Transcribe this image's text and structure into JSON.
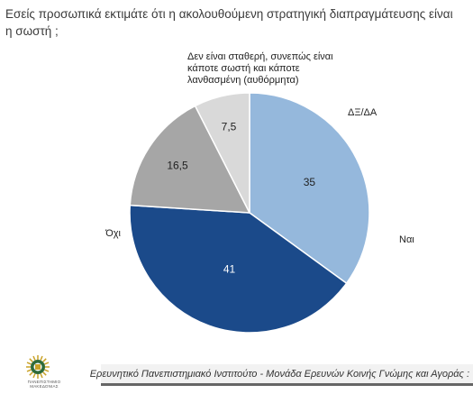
{
  "question": "Εσείς προσωπικά εκτιμάτε ότι η ακολουθούμενη στρατηγική διαπραγμάτευσης είναι η σωστή ;",
  "footer": {
    "text": "Ερευνητικό Πανεπιστημιακό Ινστιτούτο - Μονάδα Ερευνών Κοινής Γνώμης και Αγοράς :",
    "logo_text": "ΠΑΝΕΠΙΣΤΗΜΙΟ ΜΑΚΕΔΟΝΙΑΣ"
  },
  "colors": {
    "nai": "#95b8dc",
    "ochi": "#1b4a8a",
    "unstable": "#a6a6a6",
    "dk_na": "#d9d9d9",
    "logo_gold": "#c9a227",
    "logo_green": "#2f6b3a"
  },
  "chart_data": {
    "type": "pie",
    "title": "",
    "start": "12 o'clock, clockwise",
    "slices": [
      {
        "key": "nai",
        "label": "Ναι",
        "value": 35
      },
      {
        "key": "ochi",
        "label": "Όχι",
        "value": 41
      },
      {
        "key": "unstable",
        "label": "Δεν είναι σταθερή, συνεπώς είναι κάποτε σωστή και κάποτε λανθασμένη (αυθόρμητα)",
        "value": 16.5
      },
      {
        "key": "dk_na",
        "label": "ΔΞ/ΔΑ",
        "value": 7.5
      }
    ],
    "value_labels": [
      "35",
      "41",
      "16,5",
      "7,5"
    ],
    "label_lines": {
      "unstable": [
        "Δεν είναι σταθερή, συνεπώς είναι",
        "κάποτε σωστή και κάποτε",
        "λανθασμένη (αυθόρμητα)"
      ]
    }
  }
}
